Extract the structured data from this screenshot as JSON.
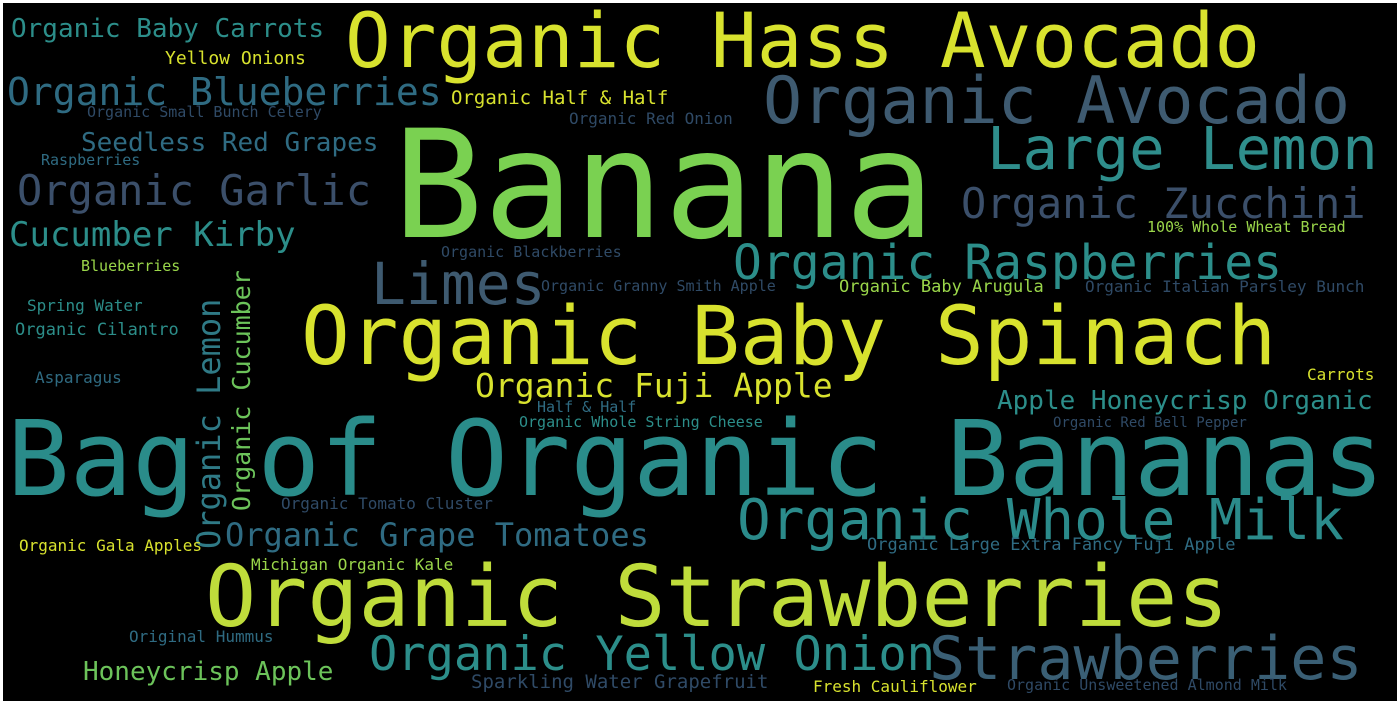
{
  "cloud": {
    "background": "#000000",
    "words": [
      {
        "text": "Banana",
        "color": "#7AD151"
      },
      {
        "text": "Bag of Organic Bananas",
        "color": "#2A8C8A"
      },
      {
        "text": "Organic Strawberries",
        "color": "#BFDC3B"
      },
      {
        "text": "Organic Baby Spinach",
        "color": "#D8E22E"
      },
      {
        "text": "Organic Hass Avocado",
        "color": "#D8E22E"
      },
      {
        "text": "Organic Avocado",
        "color": "#3E5A70"
      },
      {
        "text": "Large Lemon",
        "color": "#2F8E8C"
      },
      {
        "text": "Strawberries",
        "color": "#3A5F75"
      },
      {
        "text": "Limes",
        "color": "#3E5A70"
      },
      {
        "text": "Organic Whole Milk",
        "color": "#2B8B8B"
      },
      {
        "text": "Organic Raspberries",
        "color": "#2C8E8A"
      },
      {
        "text": "Organic Yellow Onion",
        "color": "#2C8E8A"
      },
      {
        "text": "Organic Zucchini",
        "color": "#3B4F6A"
      },
      {
        "text": "Organic Garlic",
        "color": "#3B4F6A"
      },
      {
        "text": "Organic Blueberries",
        "color": "#2F6B82"
      },
      {
        "text": "Cucumber Kirby",
        "color": "#2C8E8A"
      },
      {
        "text": "Organic Fuji Apple",
        "color": "#D8E22E"
      },
      {
        "text": "Organic Grape Tomatoes",
        "color": "#2F6B82"
      },
      {
        "text": "Organic Lemon",
        "color": "#2F7A86"
      },
      {
        "text": "Organic Cucumber",
        "color": "#6CC35A"
      },
      {
        "text": "Seedless Red Grapes",
        "color": "#2F6B82"
      },
      {
        "text": "Organic Baby Carrots",
        "color": "#2C8E8A"
      },
      {
        "text": "Apple Honeycrisp Organic",
        "color": "#2C8E8A"
      },
      {
        "text": "Honeycrisp Apple",
        "color": "#6CC35A"
      },
      {
        "text": "Organic Half & Half",
        "color": "#D8E22E"
      },
      {
        "text": "Yellow Onions",
        "color": "#D8E22E"
      },
      {
        "text": "Organic Small Bunch Celery",
        "color": "#2F4A66"
      },
      {
        "text": "Organic Red Onion",
        "color": "#2F4A66"
      },
      {
        "text": "Raspberries",
        "color": "#2F6B82"
      },
      {
        "text": "100% Whole Wheat Bread",
        "color": "#9AD64A"
      },
      {
        "text": "Organic Blackberries",
        "color": "#2F4A66"
      },
      {
        "text": "Organic Granny Smith Apple",
        "color": "#2F4A66"
      },
      {
        "text": "Organic Baby Arugula",
        "color": "#9AD64A"
      },
      {
        "text": "Organic Italian Parsley Bunch",
        "color": "#2F4A66"
      },
      {
        "text": "Blueberries",
        "color": "#9AD64A"
      },
      {
        "text": "Spring Water",
        "color": "#2C8E8A"
      },
      {
        "text": "Organic Cilantro",
        "color": "#2C8E8A"
      },
      {
        "text": "Asparagus",
        "color": "#2F6B82"
      },
      {
        "text": "Carrots",
        "color": "#D8E22E"
      },
      {
        "text": "Half & Half",
        "color": "#2F6B82"
      },
      {
        "text": "Organic Whole String Cheese",
        "color": "#2C8E8A"
      },
      {
        "text": "Organic Red Bell Pepper",
        "color": "#2F4A66"
      },
      {
        "text": "Organic Tomato Cluster",
        "color": "#2F4A66"
      },
      {
        "text": "Organic Gala Apples",
        "color": "#D8E22E"
      },
      {
        "text": "Organic Large Extra Fancy Fuji Apple",
        "color": "#2F6B82"
      },
      {
        "text": "Michigan Organic Kale",
        "color": "#9AD64A"
      },
      {
        "text": "Original Hummus",
        "color": "#2F6B82"
      },
      {
        "text": "Sparkling Water Grapefruit",
        "color": "#2F4A66"
      },
      {
        "text": "Fresh Cauliflower",
        "color": "#D8E22E"
      },
      {
        "text": "Organic Unsweetened Almond Milk",
        "color": "#2F4A66"
      }
    ]
  }
}
